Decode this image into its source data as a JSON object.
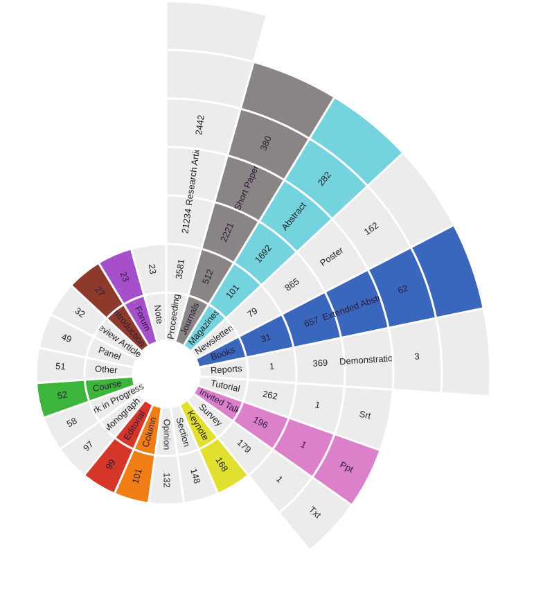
{
  "spokes": [
    {
      "name": "Proceedings",
      "color": "#ececec",
      "cells": [
        "3581",
        "21234",
        "Research Article",
        "2442"
      ]
    },
    {
      "name": "Journals",
      "color": "#8a8584",
      "cells": [
        "512",
        "2221",
        "Short Paper",
        "380"
      ]
    },
    {
      "name": "Magazines",
      "color": "#74d3df",
      "cells": [
        "101",
        "1692",
        "Abstract",
        "282"
      ]
    },
    {
      "name": "Newsletters",
      "color": "#ececec",
      "cells": [
        "79",
        "865",
        "Poster",
        "162"
      ]
    },
    {
      "name": "Books",
      "color": "#3a66bb",
      "cells": [
        "31",
        "657",
        "Extended Abstract",
        "62"
      ]
    },
    {
      "name": "Reports",
      "color": "#ececec",
      "cells": [
        "1",
        "369",
        "Demonstration",
        "3"
      ]
    },
    {
      "name": "Tutorial",
      "color": "#ececec",
      "cells": [
        "262",
        "1",
        "Srt"
      ]
    },
    {
      "name": "Invited Talk",
      "color": "#dc80cb",
      "cells": [
        "196",
        "1",
        "Ppt"
      ]
    },
    {
      "name": "Survey",
      "color": "#ececec",
      "cells": [
        "179",
        "1",
        "Txt"
      ]
    },
    {
      "name": "Keynote",
      "color": "#e2e02e",
      "cells": [
        "168"
      ]
    },
    {
      "name": "Section",
      "color": "#ececec",
      "cells": [
        "148"
      ]
    },
    {
      "name": "Opinion",
      "color": "#ececec",
      "cells": [
        "132"
      ]
    },
    {
      "name": "Column",
      "color": "#f07e14",
      "cells": [
        "101"
      ]
    },
    {
      "name": "Editorial",
      "color": "#d4372a",
      "cells": [
        "99"
      ]
    },
    {
      "name": "Monograph",
      "color": "#ececec",
      "cells": [
        "97"
      ]
    },
    {
      "name": "Work in Progress",
      "color": "#ececec",
      "cells": [
        "58"
      ]
    },
    {
      "name": "Course",
      "color": "#3db43a",
      "cells": [
        "52"
      ]
    },
    {
      "name": "Other",
      "color": "#ececec",
      "cells": [
        "51"
      ]
    },
    {
      "name": "Panel",
      "color": "#ececec",
      "cells": [
        "49"
      ]
    },
    {
      "name": "Review Article",
      "color": "#ececec",
      "cells": [
        "32"
      ]
    },
    {
      "name": "Introduction",
      "color": "#8e3a2b",
      "cells": [
        "27"
      ]
    },
    {
      "name": "Forum",
      "color": "#a64fca",
      "cells": [
        "23"
      ]
    },
    {
      "name": "Note",
      "color": "#ececec",
      "cells": [
        "23"
      ]
    }
  ]
}
